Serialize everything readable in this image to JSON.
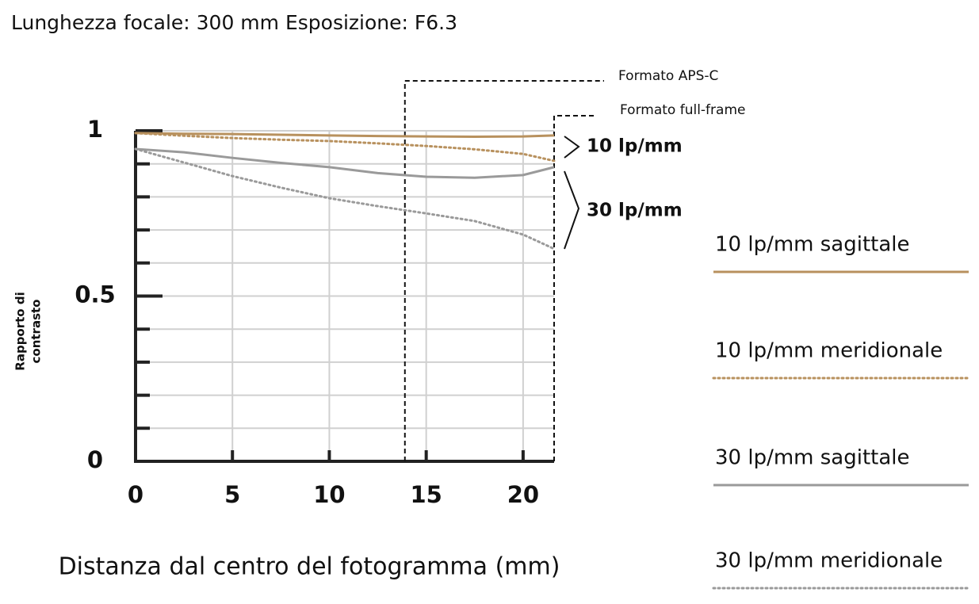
{
  "chart_data": {
    "type": "line",
    "title": "Lunghezza focale: 300 mm Esposizione: F6.3",
    "xlabel": "Distanza dal centro del fotogramma (mm)",
    "ylabel": [
      "Rapporto di",
      "contrasto"
    ],
    "x": [
      0,
      2.5,
      5,
      7.5,
      10,
      12.5,
      15,
      17.5,
      20,
      21.6
    ],
    "series": [
      {
        "name": "10 lp/mm sagittale",
        "color": "#b8915e",
        "dotted": false,
        "values": [
          0.993,
          0.991,
          0.99,
          0.988,
          0.986,
          0.984,
          0.983,
          0.982,
          0.983,
          0.986
        ]
      },
      {
        "name": "10 lp/mm meridionale",
        "color": "#b8915e",
        "dotted": true,
        "values": [
          0.993,
          0.985,
          0.978,
          0.973,
          0.969,
          0.962,
          0.954,
          0.944,
          0.93,
          0.909
        ]
      },
      {
        "name": "30 lp/mm sagittale",
        "color": "#9a9a9a",
        "dotted": false,
        "values": [
          0.945,
          0.935,
          0.918,
          0.903,
          0.89,
          0.872,
          0.861,
          0.858,
          0.866,
          0.89
        ]
      },
      {
        "name": "30 lp/mm meridionale",
        "color": "#9a9a9a",
        "dotted": true,
        "values": [
          0.945,
          0.904,
          0.863,
          0.828,
          0.796,
          0.772,
          0.75,
          0.727,
          0.686,
          0.643
        ]
      }
    ],
    "xlim": [
      0,
      21.6
    ],
    "xticks": [
      0,
      5,
      10,
      15,
      20
    ],
    "ylim": [
      0,
      1
    ],
    "yticks": [
      0,
      0.5,
      1
    ],
    "yminorticks": [
      0.1,
      0.2,
      0.3,
      0.4,
      0.6,
      0.7,
      0.8,
      0.9
    ],
    "grid": true,
    "formats": [
      {
        "label": "Formato APS-C",
        "x": 13.9
      },
      {
        "label": "Formato full-frame",
        "x": 21.6
      }
    ],
    "groups": [
      "10 lp/mm",
      "30 lp/mm"
    ]
  }
}
